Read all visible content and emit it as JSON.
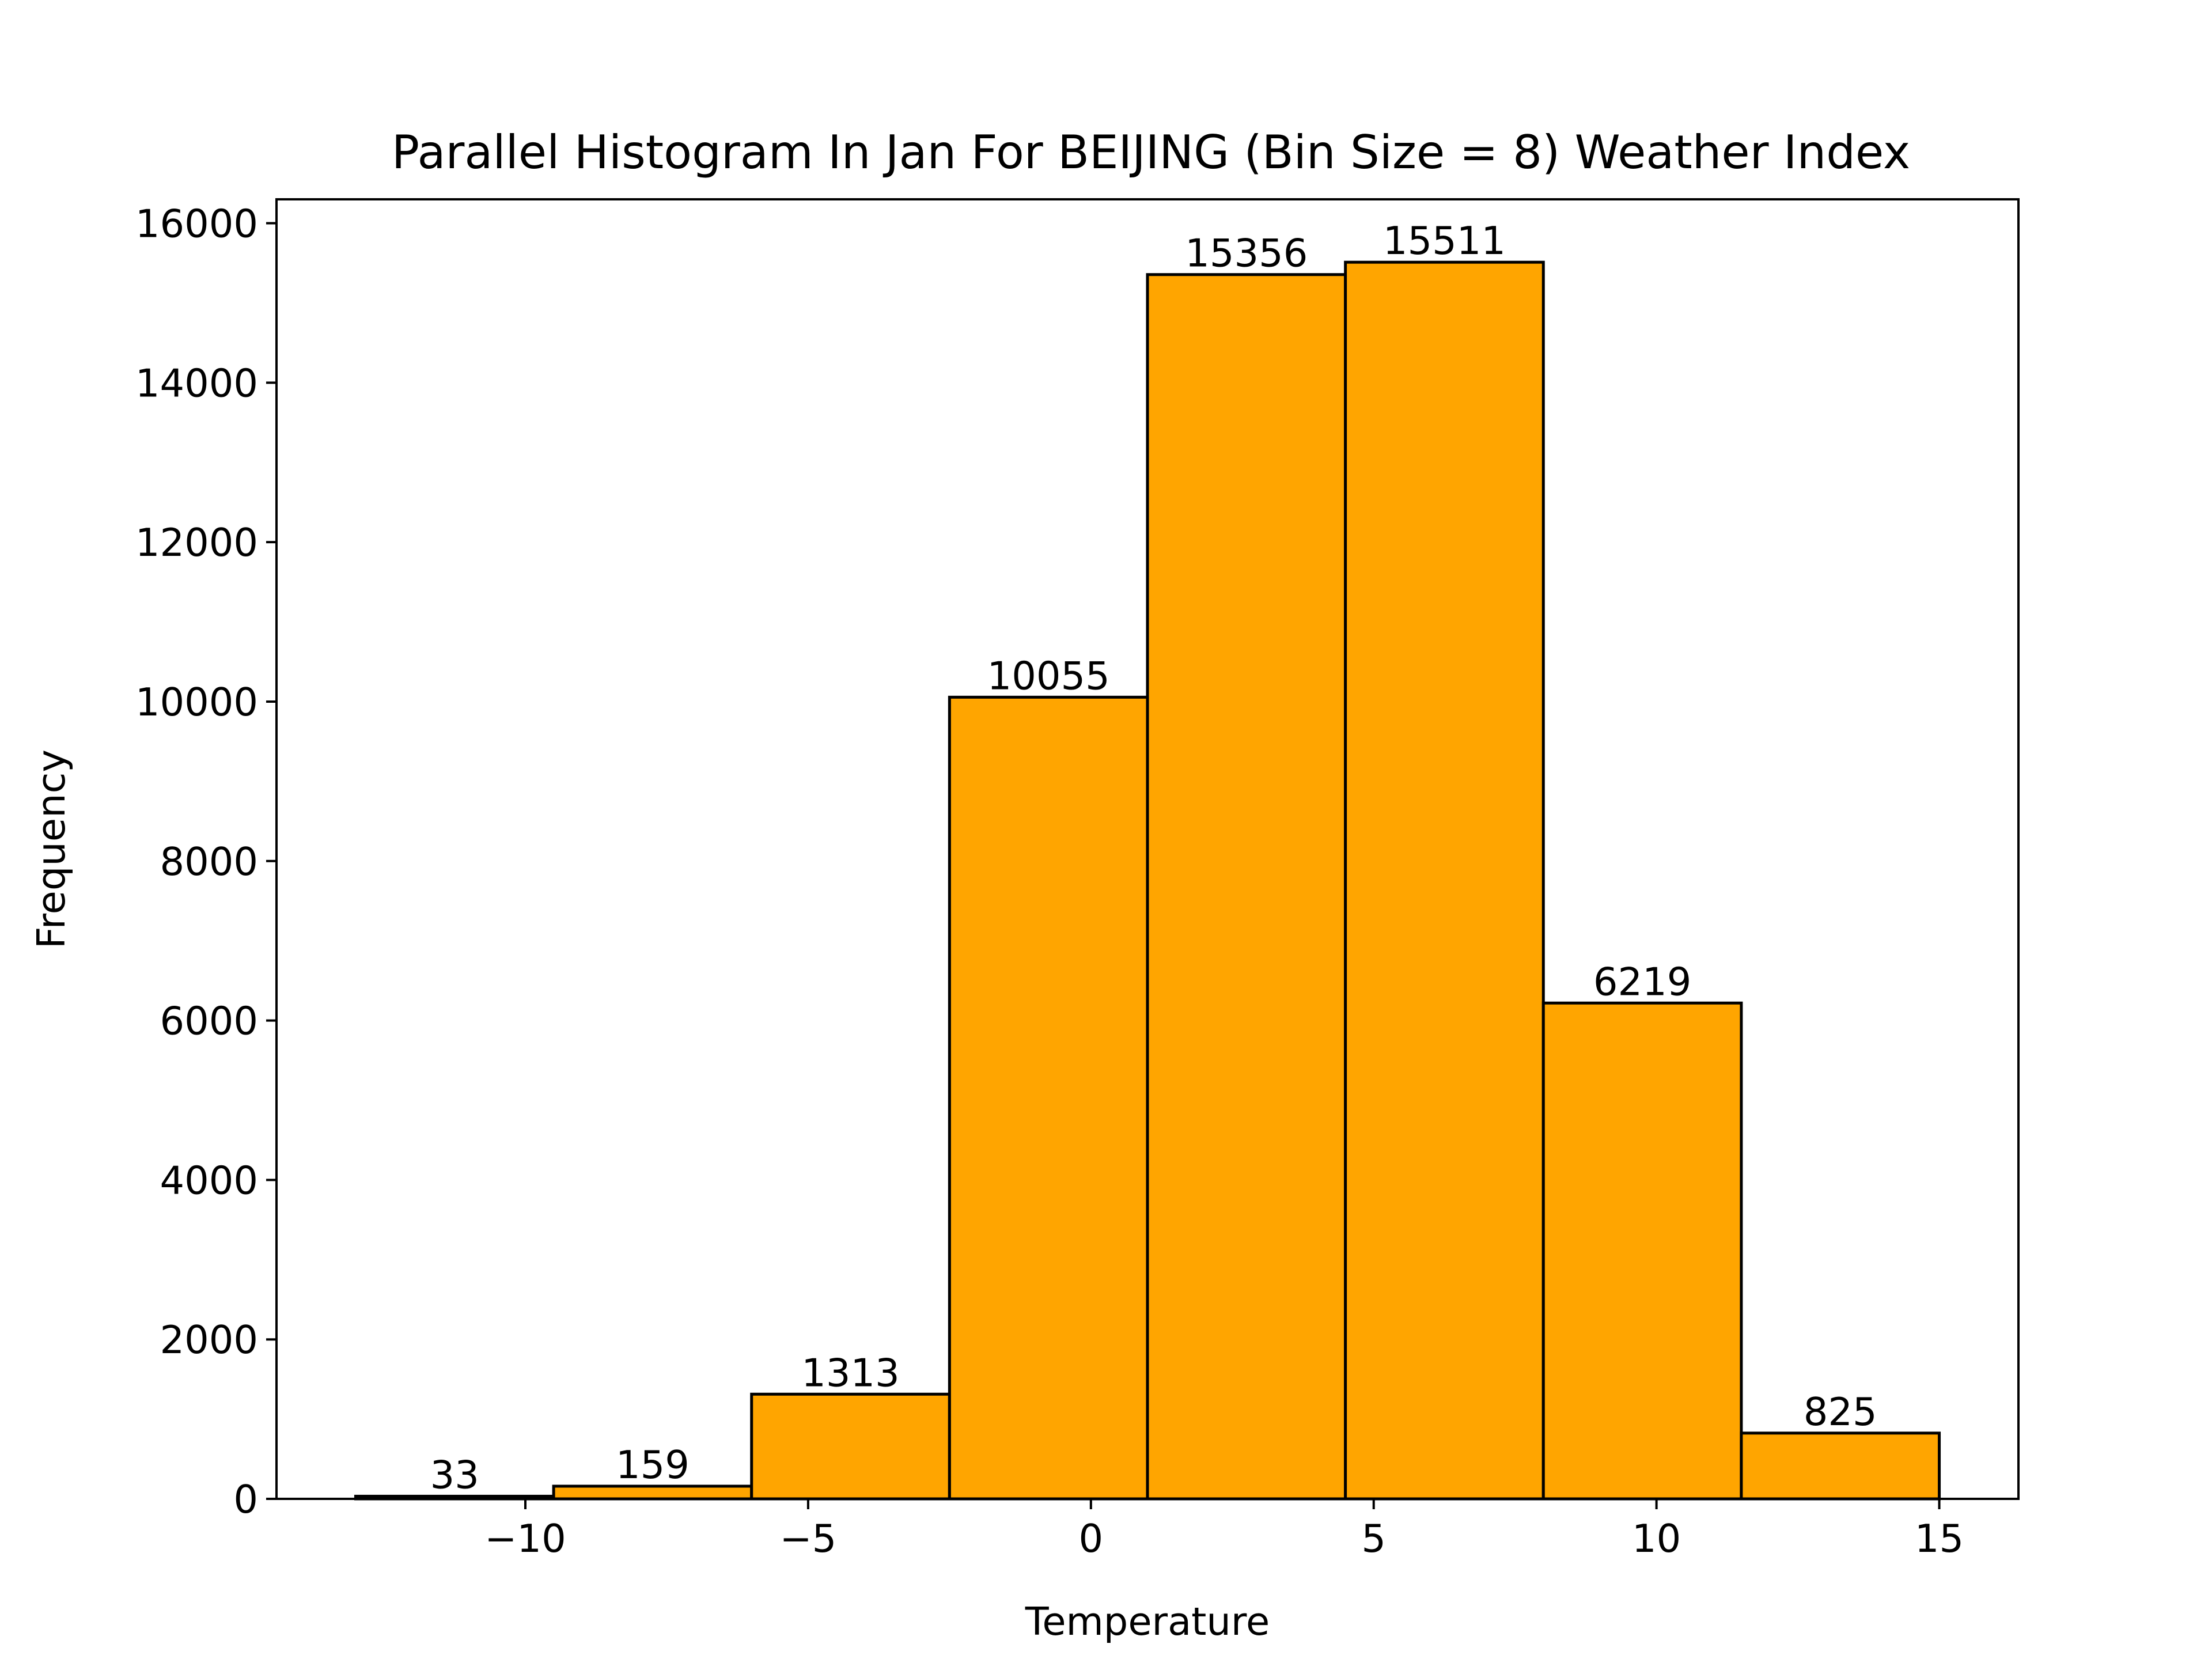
{
  "chart_data": {
    "type": "bar",
    "title": "Parallel Histogram In Jan For BEIJING (Bin Size = 8) Weather Index",
    "xlabel": "Temperature",
    "ylabel": "Frequency",
    "bin_edges": [
      -13.0,
      -9.5,
      -6.0,
      -2.5,
      1.0,
      4.5,
      8.0,
      11.5,
      15.0
    ],
    "values": [
      33,
      159,
      1313,
      10055,
      15356,
      15511,
      6219,
      825
    ],
    "value_labels": [
      "33",
      "159",
      "1313",
      "10055",
      "15356",
      "15511",
      "6219",
      "825"
    ],
    "xlim": [
      -14.4,
      16.4
    ],
    "ylim": [
      0,
      16300
    ],
    "x_ticks": [
      -10,
      -5,
      0,
      5,
      10,
      15
    ],
    "x_tick_labels": [
      "−10",
      "−5",
      "0",
      "5",
      "10",
      "15"
    ],
    "y_ticks": [
      0,
      2000,
      4000,
      6000,
      8000,
      10000,
      12000,
      14000,
      16000
    ],
    "y_tick_labels": [
      "0",
      "2000",
      "4000",
      "6000",
      "8000",
      "10000",
      "12000",
      "14000",
      "16000"
    ],
    "bar_color": "#FFA500",
    "edge_color": "#000000",
    "grid": false,
    "legend": "none"
  }
}
